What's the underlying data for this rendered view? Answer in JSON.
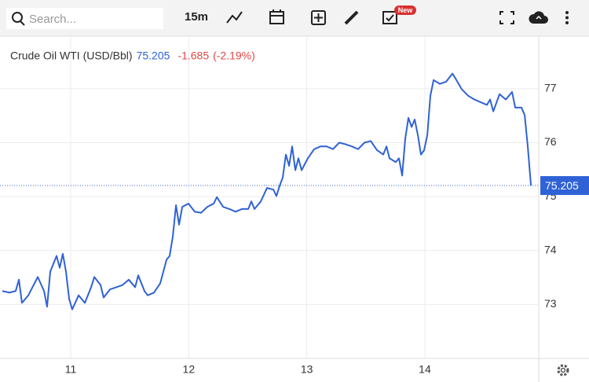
{
  "toolbar": {
    "search_placeholder": "Search...",
    "interval": "15m",
    "badge": "New"
  },
  "chart_data": {
    "type": "line",
    "symbol": "Crude Oil WTI (USD/Bbl)",
    "last": 75.205,
    "change": -1.685,
    "change_percent": "(-2.19%)",
    "xlim": [
      10.401,
      14.965
    ],
    "xticks": [
      11,
      12,
      13,
      14
    ],
    "ylim": [
      72.0,
      77.96
    ],
    "yticks": [
      73,
      74,
      75,
      76,
      77
    ],
    "grid": true,
    "series": [
      {
        "name": "Crude Oil WTI",
        "color": "#2f62d6",
        "x": [
          10.421,
          10.481,
          10.534,
          10.561,
          10.587,
          10.641,
          10.721,
          10.774,
          10.8,
          10.827,
          10.88,
          10.907,
          10.933,
          10.96,
          10.987,
          11.013,
          11.067,
          11.12,
          11.173,
          11.2,
          11.253,
          11.279,
          11.333,
          11.386,
          11.439,
          11.492,
          11.546,
          11.572,
          11.625,
          11.652,
          11.705,
          11.758,
          11.812,
          11.838,
          11.865,
          11.892,
          11.918,
          11.945,
          11.998,
          12.051,
          12.104,
          12.158,
          12.211,
          12.238,
          12.291,
          12.344,
          12.397,
          12.45,
          12.504,
          12.53,
          12.557,
          12.61,
          12.663,
          12.717,
          12.743,
          12.77,
          12.796,
          12.823,
          12.85,
          12.876,
          12.903,
          12.929,
          12.956,
          13.009,
          13.063,
          13.116,
          13.169,
          13.222,
          13.275,
          13.329,
          13.382,
          13.435,
          13.488,
          13.542,
          13.595,
          13.648,
          13.675,
          13.701,
          13.754,
          13.781,
          13.808,
          13.834,
          13.861,
          13.888,
          13.914,
          13.941,
          13.967,
          13.994,
          14.021,
          14.047,
          14.074,
          14.127,
          14.18,
          14.234,
          14.26,
          14.313,
          14.367,
          14.42,
          14.473,
          14.526,
          14.553,
          14.58,
          14.633,
          14.686,
          14.739,
          14.766,
          14.819,
          14.846,
          14.872,
          14.899
        ],
        "values": [
          73.25,
          73.22,
          73.25,
          73.46,
          73.03,
          73.17,
          73.51,
          73.25,
          72.96,
          73.61,
          73.9,
          73.68,
          73.94,
          73.61,
          73.1,
          72.91,
          73.17,
          73.03,
          73.32,
          73.51,
          73.36,
          73.13,
          73.28,
          73.32,
          73.36,
          73.46,
          73.32,
          73.54,
          73.25,
          73.17,
          73.22,
          73.39,
          73.83,
          73.9,
          74.26,
          74.84,
          74.48,
          74.81,
          74.87,
          74.72,
          74.7,
          74.81,
          74.87,
          74.99,
          74.81,
          74.77,
          74.72,
          74.77,
          74.77,
          74.91,
          74.77,
          74.91,
          75.16,
          75.13,
          75.01,
          75.2,
          75.35,
          75.78,
          75.57,
          75.93,
          75.49,
          75.71,
          75.49,
          75.71,
          75.88,
          75.93,
          75.93,
          75.88,
          76.0,
          75.97,
          75.93,
          75.88,
          76.0,
          76.03,
          75.86,
          75.78,
          75.93,
          75.71,
          75.64,
          75.71,
          75.39,
          76.07,
          76.46,
          76.29,
          76.43,
          76.14,
          75.78,
          75.86,
          76.14,
          76.87,
          77.16,
          77.09,
          77.13,
          77.28,
          77.19,
          76.99,
          76.87,
          76.8,
          76.75,
          76.7,
          76.8,
          76.58,
          76.9,
          76.8,
          76.94,
          76.65,
          76.65,
          76.51,
          75.93,
          75.205
        ]
      }
    ]
  }
}
